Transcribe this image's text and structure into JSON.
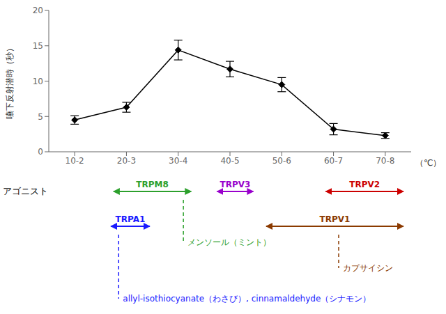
{
  "chart_data": {
    "type": "line",
    "categories": [
      "10-2",
      "20-3",
      "30-4",
      "40-5",
      "50-6",
      "60-7",
      "70-8"
    ],
    "values": [
      4.5,
      6.3,
      14.4,
      11.7,
      9.5,
      3.2,
      2.3
    ],
    "errors": [
      0.6,
      0.7,
      1.4,
      1.1,
      1.0,
      0.8,
      0.4
    ],
    "y_label": "嚥下反射潜時（秒）",
    "x_label": "（℃）",
    "ylim": [
      0,
      20
    ],
    "yticks": [
      0,
      5,
      10,
      15,
      20
    ],
    "grid": false,
    "color": "#000000",
    "marker": "diamond",
    "annotations": {
      "label": "アゴニスト",
      "channels": [
        {
          "name": "TRPM8",
          "color": "#2ca02c",
          "x": [
            0.75,
            2.25
          ]
        },
        {
          "name": "TRPV3",
          "color": "#9900cc",
          "x": [
            2.75,
            3.45
          ]
        },
        {
          "name": "TRPV2",
          "color": "#cc0000",
          "x": [
            4.85,
            6.35
          ]
        },
        {
          "name": "TRPA1",
          "color": "#1a1aff",
          "x": [
            0.7,
            1.45
          ]
        },
        {
          "name": "TRPV1",
          "color": "#8B3a00",
          "x": [
            3.7,
            6.35
          ]
        }
      ],
      "agonists": [
        {
          "text": "メンソール（ミント）",
          "color": "#2ca02c",
          "channel": "TRPM8",
          "x": 2.1
        },
        {
          "text": "カプサイシン",
          "color": "#8B3a00",
          "channel": "TRPV1",
          "x": 5.1
        },
        {
          "text": "allyl-isothiocyanate（わさび）, cinnamaldehyde（シナモン）",
          "color": "#1a1aff",
          "channel": "TRPA1",
          "x": 0.85
        }
      ]
    }
  }
}
